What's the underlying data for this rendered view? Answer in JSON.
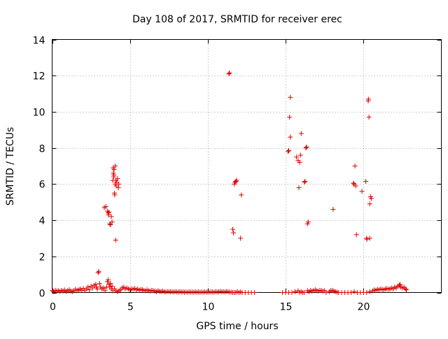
{
  "chart_data": {
    "type": "scatter",
    "title": "Day 108 of 2017, SRMTID for receiver erec",
    "xlabel": "GPS time / hours",
    "ylabel": "SRMTID / TECUs",
    "xlim": [
      0,
      25
    ],
    "ylim": [
      0,
      14
    ],
    "xticks": [
      0,
      5,
      10,
      15,
      20
    ],
    "yticks": [
      0,
      2,
      4,
      6,
      8,
      10,
      12,
      14
    ],
    "marker": "+",
    "grid": true,
    "color": "#e00000",
    "series": [
      {
        "name": "SRMTID",
        "points": [
          [
            0.0,
            0.1
          ],
          [
            0.1,
            0.05
          ],
          [
            0.2,
            0.12
          ],
          [
            0.3,
            0.08
          ],
          [
            0.4,
            0.1
          ],
          [
            0.5,
            0.06
          ],
          [
            0.6,
            0.12
          ],
          [
            0.7,
            0.08
          ],
          [
            0.8,
            0.14
          ],
          [
            0.9,
            0.05
          ],
          [
            1.0,
            0.1
          ],
          [
            1.1,
            0.15
          ],
          [
            1.2,
            0.08
          ],
          [
            1.3,
            0.05
          ],
          [
            1.4,
            0.1
          ],
          [
            1.5,
            0.18
          ],
          [
            1.6,
            0.1
          ],
          [
            1.7,
            0.15
          ],
          [
            1.8,
            0.2
          ],
          [
            1.9,
            0.12
          ],
          [
            2.0,
            0.22
          ],
          [
            2.1,
            0.1
          ],
          [
            2.2,
            0.2
          ],
          [
            2.3,
            0.3
          ],
          [
            2.4,
            0.15
          ],
          [
            2.5,
            0.35
          ],
          [
            2.6,
            0.25
          ],
          [
            2.7,
            0.4
          ],
          [
            2.8,
            0.45
          ],
          [
            2.85,
            0.3
          ],
          [
            2.9,
            0.2
          ],
          [
            2.95,
            1.1
          ],
          [
            3.0,
            1.15
          ],
          [
            3.05,
            0.5
          ],
          [
            3.1,
            0.3
          ],
          [
            3.2,
            0.2
          ],
          [
            3.3,
            0.25
          ],
          [
            3.4,
            0.1
          ],
          [
            3.5,
            0.3
          ],
          [
            3.55,
            0.6
          ],
          [
            3.6,
            0.7
          ],
          [
            3.65,
            0.45
          ],
          [
            3.7,
            0.3
          ],
          [
            3.75,
            0.5
          ],
          [
            3.8,
            0.2
          ],
          [
            3.85,
            0.35
          ],
          [
            3.9,
            0.1
          ],
          [
            4.0,
            0.2
          ],
          [
            4.1,
            0.1
          ],
          [
            4.2,
            0.05
          ],
          [
            4.3,
            0.1
          ],
          [
            4.4,
            0.15
          ],
          [
            4.5,
            0.25
          ],
          [
            4.6,
            0.3
          ],
          [
            4.7,
            0.2
          ],
          [
            4.8,
            0.25
          ],
          [
            4.9,
            0.2
          ],
          [
            5.0,
            0.15
          ],
          [
            5.1,
            0.2
          ],
          [
            5.2,
            0.18
          ],
          [
            5.3,
            0.22
          ],
          [
            5.4,
            0.15
          ],
          [
            5.5,
            0.2
          ],
          [
            5.6,
            0.12
          ],
          [
            5.7,
            0.18
          ],
          [
            5.8,
            0.15
          ],
          [
            5.9,
            0.12
          ],
          [
            6.0,
            0.1
          ],
          [
            6.1,
            0.15
          ],
          [
            6.2,
            0.1
          ],
          [
            6.3,
            0.08
          ],
          [
            6.4,
            0.12
          ],
          [
            6.5,
            0.1
          ],
          [
            6.6,
            0.08
          ],
          [
            6.7,
            0.05
          ],
          [
            6.8,
            0.1
          ],
          [
            6.9,
            0.07
          ],
          [
            7.0,
            0.05
          ],
          [
            7.1,
            0.08
          ],
          [
            7.2,
            0.05
          ],
          [
            7.3,
            0.03
          ],
          [
            7.4,
            0.06
          ],
          [
            7.5,
            0.05
          ],
          [
            7.6,
            0.04
          ],
          [
            7.7,
            0.05
          ],
          [
            7.8,
            0.03
          ],
          [
            7.9,
            0.05
          ],
          [
            8.0,
            0.04
          ],
          [
            8.1,
            0.02
          ],
          [
            8.2,
            0.05
          ],
          [
            8.3,
            0.03
          ],
          [
            8.4,
            0.04
          ],
          [
            8.5,
            0.02
          ],
          [
            8.6,
            0.03
          ],
          [
            8.7,
            0.02
          ],
          [
            8.8,
            0.04
          ],
          [
            8.9,
            0.02
          ],
          [
            9.0,
            0.03
          ],
          [
            9.1,
            0.02
          ],
          [
            9.2,
            0.04
          ],
          [
            9.3,
            0.02
          ],
          [
            9.4,
            0.03
          ],
          [
            9.5,
            0.02
          ],
          [
            9.6,
            0.03
          ],
          [
            9.7,
            0.02
          ],
          [
            9.8,
            0.04
          ],
          [
            9.9,
            0.02
          ],
          [
            10.0,
            0.03
          ],
          [
            10.1,
            0.02
          ],
          [
            10.2,
            0.04
          ],
          [
            10.3,
            0.03
          ],
          [
            10.4,
            0.02
          ],
          [
            10.5,
            0.05
          ],
          [
            10.6,
            0.03
          ],
          [
            10.7,
            0.04
          ],
          [
            10.8,
            0.06
          ],
          [
            10.9,
            0.04
          ],
          [
            11.0,
            0.05
          ],
          [
            11.1,
            0.03
          ],
          [
            11.2,
            0.06
          ],
          [
            11.3,
            0.04
          ],
          [
            11.4,
            0.03
          ],
          [
            11.5,
            0.02
          ],
          [
            11.6,
            0.0
          ],
          [
            11.7,
            0.0
          ],
          [
            11.8,
            0.0
          ],
          [
            11.9,
            0.05
          ],
          [
            12.0,
            0.0
          ],
          [
            12.1,
            0.03
          ],
          [
            12.2,
            0.0
          ],
          [
            12.4,
            0.0
          ],
          [
            12.6,
            0.0
          ],
          [
            12.8,
            0.0
          ],
          [
            13.0,
            0.0
          ],
          [
            14.8,
            0.0
          ],
          [
            15.0,
            0.0
          ],
          [
            15.2,
            0.0
          ],
          [
            15.4,
            0.0
          ],
          [
            15.6,
            0.05
          ],
          [
            15.8,
            0.1
          ],
          [
            15.9,
            0.0
          ],
          [
            16.0,
            0.05
          ],
          [
            16.1,
            0.0
          ],
          [
            16.2,
            0.0
          ],
          [
            16.4,
            0.1
          ],
          [
            16.5,
            0.05
          ],
          [
            16.6,
            0.12
          ],
          [
            16.7,
            0.08
          ],
          [
            16.8,
            0.1
          ],
          [
            16.9,
            0.15
          ],
          [
            17.0,
            0.1
          ],
          [
            17.1,
            0.08
          ],
          [
            17.2,
            0.12
          ],
          [
            17.3,
            0.1
          ],
          [
            17.4,
            0.08
          ],
          [
            17.5,
            0.1
          ],
          [
            17.6,
            0.0
          ],
          [
            17.8,
            0.05
          ],
          [
            17.9,
            0.1
          ],
          [
            18.0,
            0.12
          ],
          [
            18.1,
            0.08
          ],
          [
            18.2,
            0.05
          ],
          [
            18.3,
            0.02
          ],
          [
            18.4,
            0.0
          ],
          [
            18.6,
            0.0
          ],
          [
            18.8,
            0.0
          ],
          [
            19.0,
            0.0
          ],
          [
            19.2,
            0.0
          ],
          [
            19.4,
            0.05
          ],
          [
            19.6,
            0.0
          ],
          [
            19.8,
            0.0
          ],
          [
            20.0,
            0.0
          ],
          [
            20.2,
            0.0
          ],
          [
            20.4,
            0.05
          ],
          [
            20.6,
            0.1
          ],
          [
            20.7,
            0.15
          ],
          [
            20.8,
            0.12
          ],
          [
            20.9,
            0.18
          ],
          [
            21.0,
            0.15
          ],
          [
            21.1,
            0.2
          ],
          [
            21.2,
            0.18
          ],
          [
            21.3,
            0.15
          ],
          [
            21.4,
            0.2
          ],
          [
            21.5,
            0.22
          ],
          [
            21.6,
            0.18
          ],
          [
            21.7,
            0.2
          ],
          [
            21.8,
            0.25
          ],
          [
            21.9,
            0.2
          ],
          [
            22.0,
            0.3
          ],
          [
            22.1,
            0.25
          ],
          [
            22.2,
            0.35
          ],
          [
            22.3,
            0.4
          ],
          [
            22.35,
            0.45
          ],
          [
            22.4,
            0.3
          ],
          [
            22.5,
            0.25
          ],
          [
            22.6,
            0.3
          ],
          [
            22.7,
            0.2
          ],
          [
            22.75,
            0.15
          ],
          [
            3.35,
            4.7
          ],
          [
            3.45,
            4.75
          ],
          [
            3.55,
            4.5
          ],
          [
            3.6,
            4.4
          ],
          [
            3.62,
            4.3
          ],
          [
            3.65,
            4.45
          ],
          [
            3.7,
            3.8
          ],
          [
            3.75,
            3.75
          ],
          [
            3.8,
            4.2
          ],
          [
            3.85,
            3.9
          ],
          [
            3.9,
            6.2
          ],
          [
            3.92,
            6.9
          ],
          [
            3.95,
            6.4
          ],
          [
            3.97,
            6.5
          ],
          [
            4.0,
            5.5
          ],
          [
            4.02,
            5.4
          ],
          [
            4.05,
            7.0
          ],
          [
            4.05,
            6.0
          ],
          [
            4.08,
            2.9
          ],
          [
            4.1,
            6.2
          ],
          [
            4.12,
            5.9
          ],
          [
            4.15,
            6.1
          ],
          [
            4.2,
            6.3
          ],
          [
            4.25,
            5.8
          ],
          [
            4.28,
            6.0
          ],
          [
            3.98,
            6.8
          ],
          [
            3.93,
            6.6
          ],
          [
            11.35,
            12.1
          ],
          [
            11.4,
            12.15
          ],
          [
            11.6,
            3.5
          ],
          [
            11.65,
            3.3
          ],
          [
            11.7,
            6.0
          ],
          [
            11.75,
            6.1
          ],
          [
            11.8,
            6.15
          ],
          [
            11.85,
            6.2
          ],
          [
            12.1,
            3.0
          ],
          [
            12.15,
            5.4
          ],
          [
            15.15,
            7.8
          ],
          [
            15.2,
            7.85
          ],
          [
            15.25,
            9.7
          ],
          [
            15.3,
            10.8
          ],
          [
            15.3,
            8.6
          ],
          [
            15.7,
            7.5
          ],
          [
            15.8,
            7.3
          ],
          [
            15.85,
            5.8
          ],
          [
            15.9,
            7.2
          ],
          [
            15.95,
            7.6
          ],
          [
            16.0,
            8.8
          ],
          [
            16.2,
            6.1
          ],
          [
            16.25,
            6.15
          ],
          [
            16.3,
            8.0
          ],
          [
            16.35,
            8.05
          ],
          [
            16.4,
            3.8
          ],
          [
            16.45,
            3.9
          ],
          [
            18.05,
            4.6
          ],
          [
            19.35,
            6.05
          ],
          [
            19.4,
            6.0
          ],
          [
            19.45,
            7.0
          ],
          [
            19.5,
            5.9
          ],
          [
            19.55,
            3.2
          ],
          [
            19.9,
            5.6
          ],
          [
            20.15,
            6.15
          ],
          [
            20.2,
            3.0
          ],
          [
            20.22,
            2.95
          ],
          [
            20.3,
            10.6
          ],
          [
            20.32,
            10.7
          ],
          [
            20.35,
            9.7
          ],
          [
            20.4,
            4.9
          ],
          [
            20.4,
            3.0
          ],
          [
            20.45,
            5.3
          ],
          [
            20.5,
            5.2
          ]
        ]
      }
    ]
  }
}
